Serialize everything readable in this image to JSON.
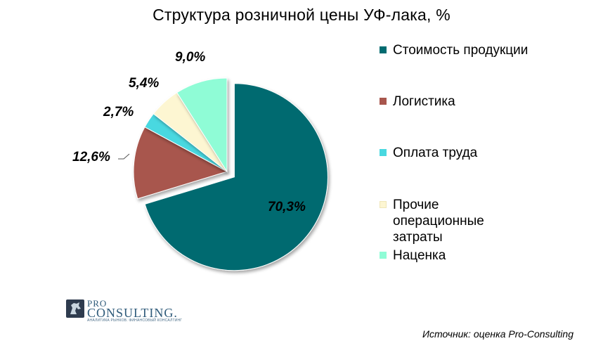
{
  "chart_data": {
    "type": "pie",
    "title": "Структура  розничной цены УФ-лака, %",
    "slices": [
      {
        "name": "Стоимость продукции",
        "value": 70.3,
        "label": "70,3%",
        "color": "#006b70"
      },
      {
        "name": "Логистика",
        "value": 12.6,
        "label": "12,6%",
        "color": "#a8564d"
      },
      {
        "name": "Оплата труда",
        "value": 2.7,
        "label": "2,7%",
        "color": "#49d8e0"
      },
      {
        "name": "Прочие операционные затраты",
        "value": 5.4,
        "label": "5,4%",
        "color": "#fdf6d2"
      },
      {
        "name": "Наценка",
        "value": 9.0,
        "label": "9,0%",
        "color": "#8ffcd6"
      }
    ],
    "legend_position": "right"
  },
  "logo": {
    "pro": "PRO",
    "name": "CONSULTING.",
    "tagline": "АНАЛИТИКА РЫНКОВ. ФИНАНСОВЫЙ КОНСАЛТИНГ"
  },
  "source": "Источник: оценка Pro-Consulting"
}
